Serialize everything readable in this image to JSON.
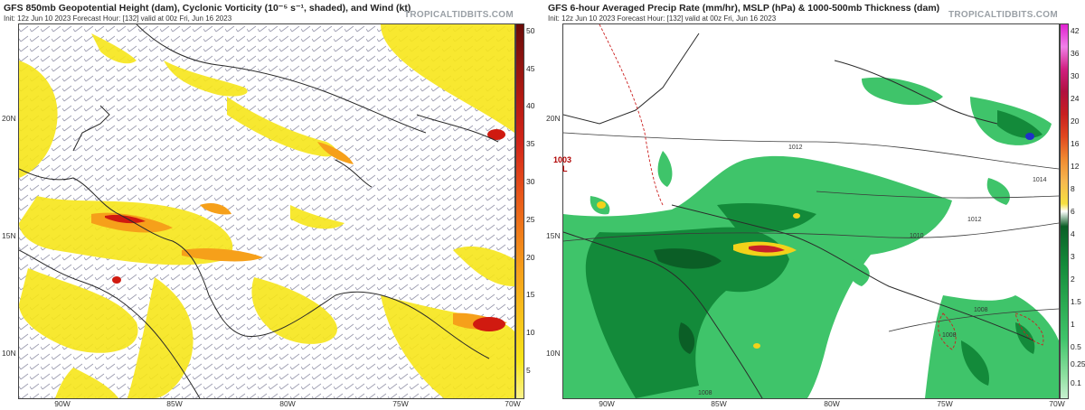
{
  "left_panel": {
    "title": "GFS 850mb Geopotential Height (dam), Cyclonic Vorticity (10⁻⁵ s⁻¹, shaded), and Wind (kt)",
    "subtitle": "Init: 12z Jun 10 2023   Forecast Hour: [132]   valid at 00z Fri, Jun 16 2023",
    "brand": "TROPICALTIDBITS.COM",
    "lat_labels": [
      "20N",
      "15N",
      "10N"
    ],
    "lon_labels": [
      "90W",
      "85W",
      "80W",
      "75W",
      "70W"
    ],
    "colorbar_ticks": [
      "50",
      "45",
      "40",
      "35",
      "30",
      "25",
      "20",
      "15",
      "10",
      "5"
    ]
  },
  "right_panel": {
    "title": "GFS 6-hour Averaged Precip Rate (mm/hr), MSLP (hPa) & 1000-500mb Thickness (dam)",
    "subtitle": "Init: 12z Jun 10 2023   Forecast Hour: [132]   valid at 00z Fri, Jun 16 2023",
    "brand": "TROPICALTIDBITS.COM",
    "lat_labels": [
      "20N",
      "15N",
      "10N"
    ],
    "lon_labels": [
      "90W",
      "85W",
      "80W",
      "75W",
      "70W"
    ],
    "colorbar_ticks": [
      "42",
      "36",
      "30",
      "24",
      "20",
      "16",
      "12",
      "8",
      "6",
      "4",
      "3",
      "2",
      "1.5",
      "1",
      "0.5",
      "0.25",
      "0.1"
    ],
    "mslp_labels": [
      "1012",
      "1014",
      "1012",
      "1010",
      "1008",
      "1008",
      "1008"
    ],
    "low_label": "1003",
    "low_symbol": "L"
  },
  "colors": {
    "vorticity_low": "#f7e61a",
    "vorticity_mid": "#f6a01a",
    "vorticity_high": "#d01a10",
    "precip_light": "#3fc46a",
    "precip_mid": "#138a3a",
    "precip_dark": "#0b5e26",
    "land_outline": "#2a2a2a",
    "isobar": "#3a3a3a",
    "thickness": "#cc2020",
    "wind_barb": "#8a8aa0"
  }
}
